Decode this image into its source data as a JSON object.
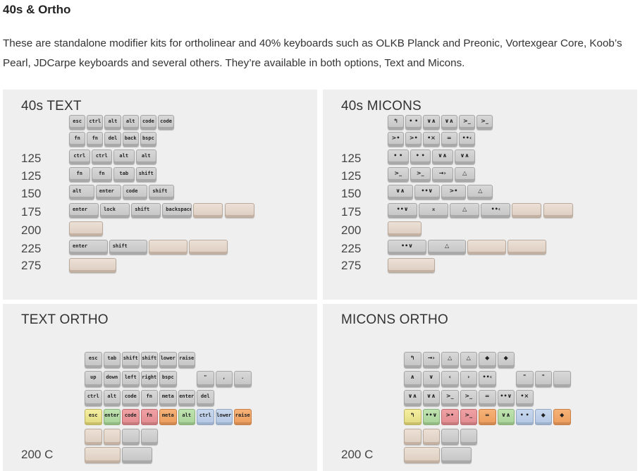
{
  "page": {
    "title": "40s & Ortho",
    "description": "These are standalone modifier kits for ortholinear and 40% keyboards such as OLKB Planck and Preonic, Vortexgear Core, Koob’s Pearl, JDCarpe keyboards and several others. They’re available in both options, Text and Micons."
  },
  "panels": [
    {
      "id": "40s-text",
      "title": "40s TEXT",
      "row_labels": [
        "125",
        "125",
        "150",
        "175",
        "200",
        "225",
        "275"
      ],
      "keys": [
        {
          "label": "esc",
          "color": "grey"
        },
        {
          "label": "ctrl",
          "color": "grey"
        },
        {
          "label": "alt",
          "color": "grey"
        },
        {
          "label": "alt",
          "color": "grey"
        },
        {
          "label": "code",
          "color": "grey"
        },
        {
          "label": "code",
          "color": "grey"
        },
        {
          "label": "fn",
          "color": "grey"
        },
        {
          "label": "fn",
          "color": "grey"
        },
        {
          "label": "del",
          "color": "grey"
        },
        {
          "label": "back",
          "color": "grey"
        },
        {
          "label": "bspc",
          "color": "grey"
        },
        {
          "label": "ctrl",
          "color": "grey"
        },
        {
          "label": "ctrl",
          "color": "grey"
        },
        {
          "label": "alt",
          "color": "grey"
        },
        {
          "label": "alt",
          "color": "grey"
        },
        {
          "label": "fn",
          "color": "grey"
        },
        {
          "label": "fn",
          "color": "grey"
        },
        {
          "label": "tab",
          "color": "grey"
        },
        {
          "label": "shift",
          "color": "grey"
        },
        {
          "label": "alt",
          "color": "grey"
        },
        {
          "label": "enter",
          "color": "grey"
        },
        {
          "label": "code",
          "color": "grey"
        },
        {
          "label": "shift",
          "color": "grey"
        },
        {
          "label": "enter",
          "color": "grey"
        },
        {
          "label": "lock",
          "color": "grey"
        },
        {
          "label": "shift",
          "color": "grey"
        },
        {
          "label": "backspace",
          "color": "grey"
        },
        {
          "label": "",
          "color": "beige"
        },
        {
          "label": "",
          "color": "beige"
        },
        {
          "label": "",
          "color": "beige"
        },
        {
          "label": "enter",
          "color": "grey"
        },
        {
          "label": "shift",
          "color": "grey"
        },
        {
          "label": "",
          "color": "beige"
        },
        {
          "label": "",
          "color": "beige"
        },
        {
          "label": "",
          "color": "beige"
        }
      ]
    },
    {
      "id": "40s-micons",
      "title": "40s MICONS",
      "row_labels": [
        "125",
        "125",
        "150",
        "175",
        "200",
        "225",
        "275"
      ],
      "keys": [
        {
          "label": "↰",
          "color": "grey"
        },
        {
          "label": "• •",
          "color": "grey"
        },
        {
          "label": "∨∧",
          "color": "grey"
        },
        {
          "label": "∨∧",
          "color": "grey"
        },
        {
          "label": ">_",
          "color": "grey"
        },
        {
          "label": ">_",
          "color": "grey"
        },
        {
          "label": ">•",
          "color": "grey"
        },
        {
          "label": ">•",
          "color": "grey"
        },
        {
          "label": "•×",
          "color": "grey"
        },
        {
          "label": "=",
          "color": "grey"
        },
        {
          "label": "••‹",
          "color": "grey"
        },
        {
          "label": "• •",
          "color": "grey"
        },
        {
          "label": "• •",
          "color": "grey"
        },
        {
          "label": "∨∧",
          "color": "grey"
        },
        {
          "label": "∨∧",
          "color": "grey"
        },
        {
          "label": ">_",
          "color": "grey"
        },
        {
          "label": ">_",
          "color": "grey"
        },
        {
          "label": "→›",
          "color": "grey"
        },
        {
          "label": "△",
          "color": "grey"
        },
        {
          "label": "∨∧",
          "color": "grey"
        },
        {
          "label": "••∨",
          "color": "grey"
        },
        {
          "label": ">•",
          "color": "grey"
        },
        {
          "label": "△",
          "color": "grey"
        },
        {
          "label": "••∨",
          "color": "grey"
        },
        {
          "label": "⌅",
          "color": "grey"
        },
        {
          "label": "△",
          "color": "grey"
        },
        {
          "label": "••‹",
          "color": "grey"
        },
        {
          "label": "",
          "color": "beige"
        },
        {
          "label": "",
          "color": "beige"
        },
        {
          "label": "",
          "color": "beige"
        },
        {
          "label": "••∨",
          "color": "grey"
        },
        {
          "label": "△",
          "color": "grey"
        },
        {
          "label": "",
          "color": "beige"
        },
        {
          "label": "",
          "color": "beige"
        },
        {
          "label": "",
          "color": "beige"
        }
      ]
    },
    {
      "id": "text-ortho",
      "title": "TEXT ORTHO",
      "row_labels": [
        "200 C"
      ],
      "keys": [
        {
          "label": "esc",
          "color": "grey"
        },
        {
          "label": "tab",
          "color": "grey"
        },
        {
          "label": "shift",
          "color": "grey"
        },
        {
          "label": "shift",
          "color": "grey"
        },
        {
          "label": "lower",
          "color": "grey"
        },
        {
          "label": "raise",
          "color": "grey"
        },
        {
          "label": "up",
          "color": "grey"
        },
        {
          "label": "down",
          "color": "grey"
        },
        {
          "label": "left",
          "color": "grey"
        },
        {
          "label": "right",
          "color": "grey"
        },
        {
          "label": "bspc",
          "color": "grey"
        },
        {
          "label": "\"",
          "color": "grey"
        },
        {
          "label": ",",
          "color": "grey"
        },
        {
          "label": ".",
          "color": "grey"
        },
        {
          "label": "ctrl",
          "color": "grey"
        },
        {
          "label": "alt",
          "color": "grey"
        },
        {
          "label": "code",
          "color": "grey"
        },
        {
          "label": "fn",
          "color": "grey"
        },
        {
          "label": "meta",
          "color": "grey"
        },
        {
          "label": "enter",
          "color": "grey"
        },
        {
          "label": "del",
          "color": "grey"
        },
        {
          "label": "esc",
          "color": "yellow"
        },
        {
          "label": "enter",
          "color": "green"
        },
        {
          "label": "code",
          "color": "red"
        },
        {
          "label": "fn",
          "color": "red"
        },
        {
          "label": "meta",
          "color": "orange"
        },
        {
          "label": "alt",
          "color": "green"
        },
        {
          "label": "ctrl",
          "color": "blue"
        },
        {
          "label": "lower",
          "color": "blue"
        },
        {
          "label": "raise",
          "color": "orange"
        },
        {
          "label": "",
          "color": "beige"
        },
        {
          "label": "",
          "color": "beige"
        },
        {
          "label": "",
          "color": "grey"
        },
        {
          "label": "",
          "color": "grey"
        },
        {
          "label": "",
          "color": "beige"
        },
        {
          "label": "",
          "color": "grey"
        }
      ]
    },
    {
      "id": "micons-ortho",
      "title": "MICONS ORTHO",
      "row_labels": [
        "200 C"
      ],
      "keys": [
        {
          "label": "↰",
          "color": "grey"
        },
        {
          "label": "→›",
          "color": "grey"
        },
        {
          "label": "△",
          "color": "grey"
        },
        {
          "label": "△",
          "color": "grey"
        },
        {
          "label": "◆",
          "color": "grey"
        },
        {
          "label": "◆",
          "color": "grey"
        },
        {
          "label": "∧",
          "color": "grey"
        },
        {
          "label": "∨",
          "color": "grey"
        },
        {
          "label": "‹",
          "color": "grey"
        },
        {
          "label": "›",
          "color": "grey"
        },
        {
          "label": "••‹",
          "color": "grey"
        },
        {
          "label": "\"",
          "color": "grey"
        },
        {
          "label": "\"",
          "color": "grey"
        },
        {
          "label": "",
          "color": "grey"
        },
        {
          "label": "∨∧",
          "color": "grey"
        },
        {
          "label": "∨∧",
          "color": "grey"
        },
        {
          "label": ">_",
          "color": "grey"
        },
        {
          "label": ">_",
          "color": "grey"
        },
        {
          "label": "=",
          "color": "grey"
        },
        {
          "label": "••∨",
          "color": "grey"
        },
        {
          "label": "•×",
          "color": "grey"
        },
        {
          "label": "↰",
          "color": "yellow"
        },
        {
          "label": "••∨",
          "color": "green"
        },
        {
          "label": ">•",
          "color": "red"
        },
        {
          "label": ">_",
          "color": "red"
        },
        {
          "label": "=",
          "color": "orange"
        },
        {
          "label": "∨∧",
          "color": "green"
        },
        {
          "label": "• •",
          "color": "blue"
        },
        {
          "label": "◆",
          "color": "blue"
        },
        {
          "label": "◆",
          "color": "orange"
        },
        {
          "label": "",
          "color": "beige"
        },
        {
          "label": "",
          "color": "beige"
        },
        {
          "label": "",
          "color": "grey"
        },
        {
          "label": "",
          "color": "grey"
        },
        {
          "label": "",
          "color": "beige"
        },
        {
          "label": "",
          "color": "grey"
        }
      ]
    }
  ]
}
